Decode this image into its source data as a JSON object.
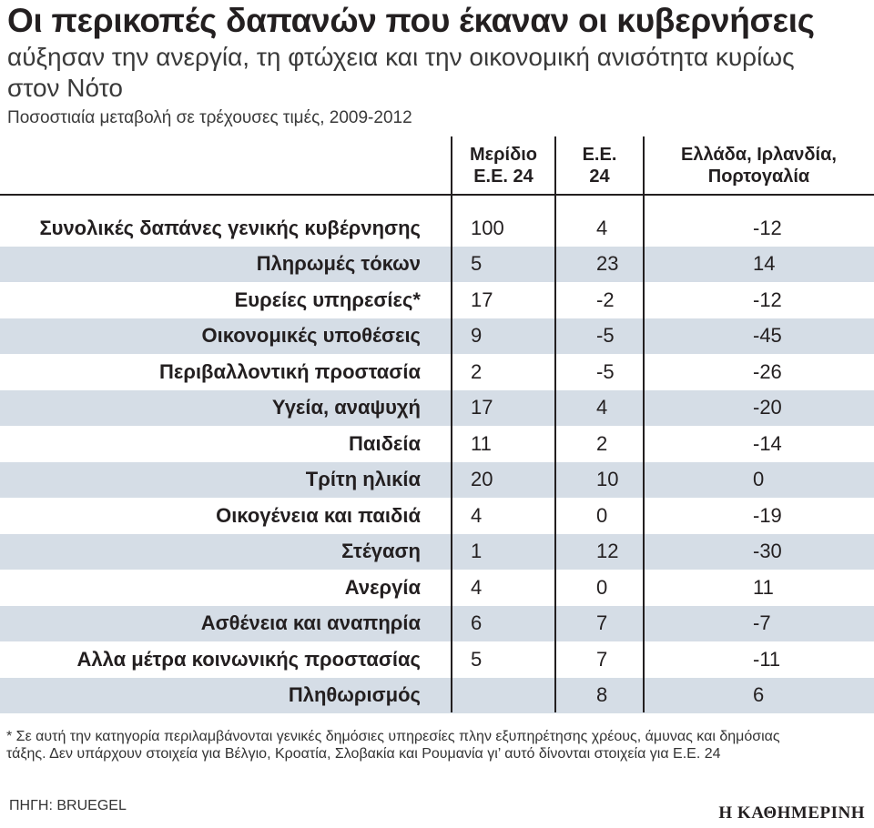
{
  "title": "Οι περικοπές δαπανών που έκαναν οι κυβερνήσεις",
  "subtitle": "αύξησαν την ανεργία, τη φτώχεια και την οικονομική ανισότητα κυρίως στον Νότο",
  "caption": "Ποσοστιαία μεταβολή σε τρέχουσες τιμές, 2009-2012",
  "headers": {
    "col1": "Μερίδιο Ε.Ε. 24",
    "col2": "Ε.Ε. 24",
    "col3": "Ελλάδα, Ιρλανδία, Πορτογαλία"
  },
  "chart_data": {
    "type": "table",
    "title": "Οι περικοπές δαπανών που έκαναν οι κυβερνήσεις",
    "columns": [
      "",
      "Μερίδιο Ε.Ε. 24",
      "Ε.Ε. 24",
      "Ελλάδα, Ιρλανδία, Πορτογαλία"
    ],
    "rows": [
      {
        "label": "Συνολικές δαπάνες γενικής κυβέρνησης",
        "share": "100",
        "eu": "4",
        "gip": "-12"
      },
      {
        "label": "Πληρωμές τόκων",
        "share": "5",
        "eu": "23",
        "gip": "14"
      },
      {
        "label": "Ευρείες υπηρεσίες*",
        "share": "17",
        "eu": "-2",
        "gip": "-12"
      },
      {
        "label": "Οικονομικές υποθέσεις",
        "share": "9",
        "eu": "-5",
        "gip": "-45"
      },
      {
        "label": "Περιβαλλοντική προστασία",
        "share": "2",
        "eu": "-5",
        "gip": "-26"
      },
      {
        "label": "Υγεία, αναψυχή",
        "share": "17",
        "eu": "4",
        "gip": "-20"
      },
      {
        "label": "Παιδεία",
        "share": "11",
        "eu": "2",
        "gip": "-14"
      },
      {
        "label": "Τρίτη ηλικία",
        "share": "20",
        "eu": "10",
        "gip": "0"
      },
      {
        "label": "Οικογένεια και παιδιά",
        "share": "4",
        "eu": "0",
        "gip": "-19"
      },
      {
        "label": "Στέγαση",
        "share": "1",
        "eu": "12",
        "gip": "-30"
      },
      {
        "label": "Ανεργία",
        "share": "4",
        "eu": "0",
        "gip": "11"
      },
      {
        "label": "Ασθένεια και αναπηρία",
        "share": "6",
        "eu": "7",
        "gip": "-7"
      },
      {
        "label": "Αλλα μέτρα κοινωνικής προστασίας",
        "share": "5",
        "eu": "7",
        "gip": "-11"
      },
      {
        "label": "Πληθωρισμός",
        "share": "",
        "eu": "8",
        "gip": "6"
      }
    ]
  },
  "footnote": "* Σε αυτή την κατηγορία περιλαμβάνονται γενικές δημόσιες υπηρεσίες πλην εξυπηρέτησης χρέους, άμυνας και δημόσιας τάξης. Δεν υπάρχουν στοιχεία για Βέλγιο, Κροατία, Σλοβακία και Ρουμανία γι’ αυτό δίνονται στοιχεία για Ε.Ε. 24",
  "source": "ΠΗΓΗ: BRUEGEL",
  "logo": "Η ΚΑΘΗΜΕΡΙΝΗ"
}
